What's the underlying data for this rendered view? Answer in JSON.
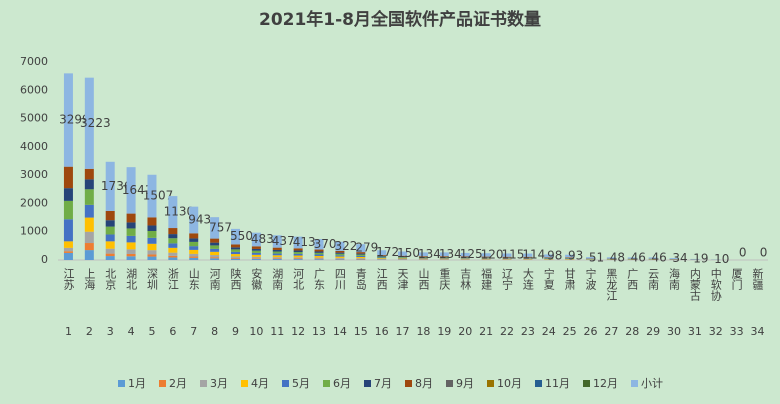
{
  "chart_data": {
    "type": "stacked_bar",
    "title": "2021年1-8月全国软件产品证书数量",
    "categories": [
      "江苏",
      "上海",
      "北京",
      "湖北",
      "深圳",
      "浙江",
      "山东",
      "河南",
      "陕西",
      "安徽",
      "湖南",
      "河北",
      "广东",
      "四川",
      "青岛",
      "江西",
      "天津",
      "山西",
      "重庆",
      "吉林",
      "福建",
      "辽宁",
      "大连",
      "宁夏",
      "甘肃",
      "宁波",
      "黑龙江",
      "广西",
      "云南",
      "海南",
      "内蒙古",
      "中软协",
      "厦门",
      "新疆"
    ],
    "category_numbers": [
      1,
      2,
      3,
      4,
      5,
      6,
      7,
      8,
      9,
      10,
      11,
      12,
      13,
      14,
      15,
      16,
      17,
      18,
      19,
      20,
      21,
      22,
      23,
      24,
      25,
      26,
      27,
      28,
      29,
      30,
      31,
      32,
      33,
      34
    ],
    "ylim": [
      0,
      7000
    ],
    "yticks": [
      0,
      1000,
      2000,
      3000,
      4000,
      5000,
      6000,
      7000
    ],
    "legend": "bottom",
    "series": [
      {
        "name": "1月",
        "color": "#5b9bd5",
        "values": [
          250,
          350,
          139,
          131,
          121,
          90,
          75,
          61,
          44,
          39,
          35,
          33,
          30,
          26,
          22,
          14,
          12,
          11,
          11,
          10,
          10,
          9,
          9,
          8,
          7,
          4,
          4,
          4,
          4,
          3,
          2,
          1,
          0,
          0
        ]
      },
      {
        "name": "2月",
        "color": "#ed7d31",
        "values": [
          60,
          250,
          87,
          82,
          75,
          57,
          47,
          38,
          28,
          24,
          22,
          21,
          19,
          16,
          14,
          9,
          8,
          7,
          7,
          6,
          6,
          6,
          6,
          5,
          5,
          3,
          2,
          2,
          2,
          2,
          1,
          0,
          0,
          0
        ]
      },
      {
        "name": "3月",
        "color": "#a5a5a5",
        "values": [
          120,
          400,
          174,
          164,
          151,
          113,
          94,
          76,
          55,
          48,
          44,
          41,
          37,
          32,
          28,
          17,
          15,
          13,
          13,
          13,
          12,
          12,
          11,
          10,
          9,
          5,
          5,
          5,
          5,
          3,
          2,
          1,
          0,
          0
        ]
      },
      {
        "name": "4月",
        "color": "#ffc000",
        "values": [
          230,
          500,
          260,
          246,
          226,
          170,
          141,
          114,
          83,
          72,
          66,
          62,
          56,
          48,
          42,
          26,
          23,
          20,
          20,
          19,
          18,
          17,
          17,
          15,
          14,
          8,
          7,
          7,
          7,
          5,
          3,
          2,
          0,
          0
        ]
      },
      {
        "name": "5月",
        "color": "#4472c4",
        "values": [
          780,
          450,
          243,
          230,
          211,
          158,
          132,
          106,
          77,
          68,
          61,
          58,
          52,
          45,
          39,
          24,
          21,
          19,
          19,
          18,
          17,
          16,
          16,
          14,
          13,
          7,
          7,
          6,
          6,
          5,
          3,
          1,
          0,
          0
        ]
      },
      {
        "name": "6月",
        "color": "#70ad47",
        "values": [
          650,
          550,
          278,
          263,
          241,
          181,
          151,
          121,
          88,
          77,
          70,
          66,
          59,
          52,
          45,
          28,
          24,
          21,
          21,
          20,
          19,
          18,
          18,
          16,
          15,
          8,
          8,
          7,
          7,
          5,
          3,
          2,
          0,
          0
        ]
      },
      {
        "name": "7月",
        "color": "#264478",
        "values": [
          450,
          350,
          226,
          213,
          196,
          147,
          123,
          98,
          72,
          63,
          57,
          54,
          48,
          42,
          36,
          22,
          20,
          17,
          17,
          16,
          16,
          15,
          15,
          13,
          12,
          7,
          6,
          6,
          6,
          4,
          2,
          1,
          0,
          0
        ]
      },
      {
        "name": "8月",
        "color": "#9e480e",
        "values": [
          759,
          373,
          329,
          312,
          286,
          214,
          180,
          143,
          103,
          92,
          82,
          78,
          69,
          61,
          53,
          32,
          27,
          26,
          26,
          23,
          22,
          22,
          22,
          17,
          18,
          9,
          9,
          9,
          9,
          7,
          3,
          2,
          0,
          0
        ]
      },
      {
        "name": "9月",
        "color": "#636363",
        "values": [
          null,
          null,
          null,
          null,
          null,
          null,
          null,
          null,
          null,
          null,
          null,
          null,
          null,
          null,
          null,
          null,
          null,
          null,
          null,
          null,
          null,
          null,
          null,
          null,
          null,
          null,
          null,
          null,
          null,
          null,
          null,
          null,
          null,
          null
        ]
      },
      {
        "name": "10月",
        "color": "#997300",
        "values": [
          null,
          null,
          null,
          null,
          null,
          null,
          null,
          null,
          null,
          null,
          null,
          null,
          null,
          null,
          null,
          null,
          null,
          null,
          null,
          null,
          null,
          null,
          null,
          null,
          null,
          null,
          null,
          null,
          null,
          null,
          null,
          null,
          null,
          null
        ]
      },
      {
        "name": "11月",
        "color": "#255e91",
        "values": [
          null,
          null,
          null,
          null,
          null,
          null,
          null,
          null,
          null,
          null,
          null,
          null,
          null,
          null,
          null,
          null,
          null,
          null,
          null,
          null,
          null,
          null,
          null,
          null,
          null,
          null,
          null,
          null,
          null,
          null,
          null,
          null,
          null,
          null
        ]
      },
      {
        "name": "12月",
        "color": "#43682b",
        "values": [
          null,
          null,
          null,
          null,
          null,
          null,
          null,
          null,
          null,
          null,
          null,
          null,
          null,
          null,
          null,
          null,
          null,
          null,
          null,
          null,
          null,
          null,
          null,
          null,
          null,
          null,
          null,
          null,
          null,
          null,
          null,
          null,
          null,
          null
        ]
      },
      {
        "name": "小计",
        "color": "#8db6e2",
        "labels": true,
        "values": [
          3299,
          3223,
          1736,
          1641,
          1507,
          1130,
          943,
          757,
          550,
          483,
          437,
          413,
          370,
          322,
          279,
          172,
          150,
          134,
          134,
          125,
          120,
          115,
          114,
          98,
          93,
          51,
          48,
          46,
          46,
          34,
          19,
          10,
          0,
          0
        ]
      }
    ]
  }
}
